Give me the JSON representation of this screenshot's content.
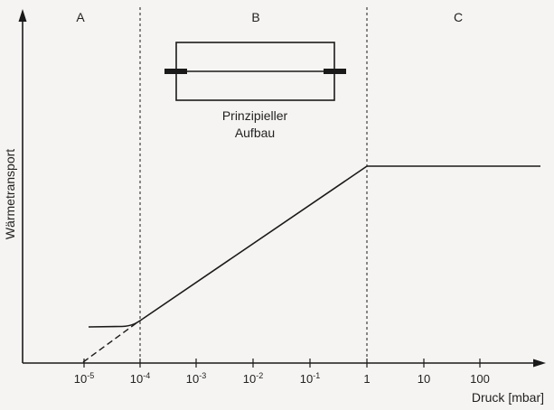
{
  "regions": [
    {
      "label": "A"
    },
    {
      "label": "B"
    },
    {
      "label": "C"
    }
  ],
  "inset": {
    "caption_line1": "Prinzipieller",
    "caption_line2": "Aufbau"
  },
  "axes": {
    "ylabel": "Wärmetransport",
    "xlabel": "Druck [mbar]"
  },
  "x_ticks": [
    {
      "base": "10",
      "exp": "-5"
    },
    {
      "base": "10",
      "exp": "-4"
    },
    {
      "base": "10",
      "exp": "-3"
    },
    {
      "base": "10",
      "exp": "-2"
    },
    {
      "base": "10",
      "exp": "-1"
    },
    {
      "base": "1",
      "exp": ""
    },
    {
      "base": "10",
      "exp": ""
    },
    {
      "base": "100",
      "exp": ""
    }
  ],
  "colors": {
    "line": "#1a1a1a",
    "background": "#f6f4f2"
  }
}
